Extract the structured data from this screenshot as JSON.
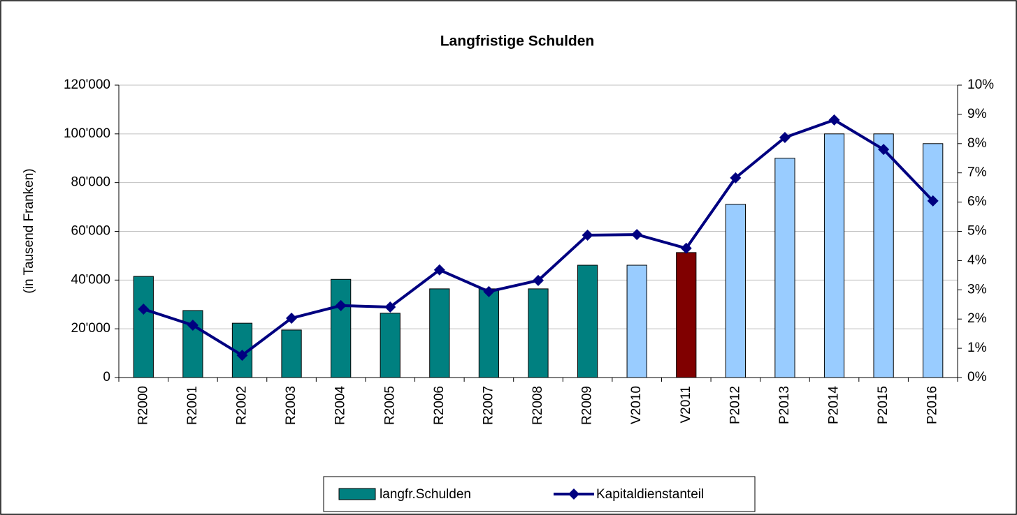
{
  "chart_data": {
    "type": "bar_line",
    "title": "Langfristige Schulden",
    "y_label": "(in Tausend Franken)",
    "categories": [
      "R2000",
      "R2001",
      "R2002",
      "R2003",
      "R2004",
      "R2005",
      "R2006",
      "R2007",
      "R2008",
      "R2009",
      "V2010",
      "V2011",
      "P2012",
      "P2013",
      "P2014",
      "P2015",
      "P2016"
    ],
    "series": [
      {
        "name": "langfr.Schulden",
        "type": "bar",
        "color": "#008080",
        "colors": [
          "#008080",
          "#008080",
          "#008080",
          "#008080",
          "#008080",
          "#008080",
          "#008080",
          "#008080",
          "#008080",
          "#008080",
          "#99ccff",
          "#800000",
          "#99ccff",
          "#99ccff",
          "#99ccff",
          "#99ccff",
          "#99ccff"
        ],
        "values": [
          41500,
          27500,
          22300,
          19500,
          40300,
          26400,
          36400,
          36400,
          36400,
          46100,
          46100,
          51300,
          71100,
          90000,
          100000,
          100000,
          96000
        ]
      },
      {
        "name": "Kapitaldienstanteil",
        "type": "line",
        "axis": "y2",
        "color": "#000080",
        "values": [
          2.34,
          1.79,
          0.76,
          2.03,
          2.46,
          2.41,
          3.68,
          2.94,
          3.32,
          4.87,
          4.89,
          4.42,
          6.83,
          8.21,
          8.81,
          7.8,
          6.04
        ]
      }
    ],
    "ylim": [
      0,
      120000
    ],
    "yticks": [
      0,
      {
        "value": 20000,
        "label": "20'000"
      },
      {
        "value": 40000,
        "label": "40'000"
      },
      {
        "value": 60000,
        "label": "60'000"
      },
      {
        "value": 80000,
        "label": "80'000"
      },
      {
        "value": 100000,
        "label": "100'000"
      },
      {
        "value": 120000,
        "label": "120'000"
      }
    ],
    "y2lim": [
      0,
      10
    ],
    "y2ticks": [
      {
        "value": 0,
        "label": "0%"
      },
      {
        "value": 1,
        "label": "1%"
      },
      {
        "value": 2,
        "label": "2%"
      },
      {
        "value": 3,
        "label": "3%"
      },
      {
        "value": 4,
        "label": "4%"
      },
      {
        "value": 5,
        "label": "5%"
      },
      {
        "value": 6,
        "label": "6%"
      },
      {
        "value": 7,
        "label": "7%"
      },
      {
        "value": 8,
        "label": "8%"
      },
      {
        "value": 9,
        "label": "9%"
      },
      {
        "value": 10,
        "label": "10%"
      }
    ],
    "grid": true,
    "legend": "bottom"
  }
}
